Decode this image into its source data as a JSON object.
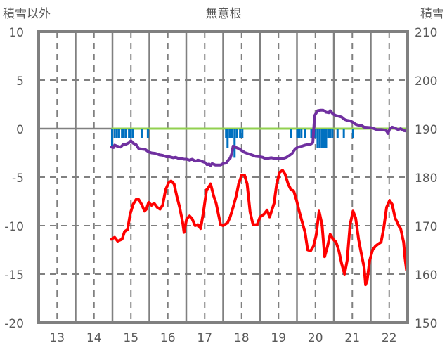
{
  "chart_data": {
    "type": "line",
    "title": "無意根",
    "ylabel_left": "積雪以外",
    "ylabel_right": "積雪",
    "xlim": [
      12.5,
      22.5
    ],
    "ylim_left": [
      -20,
      10
    ],
    "ylim_right": [
      150,
      210
    ],
    "x_ticks": [
      "13",
      "14",
      "15",
      "16",
      "17",
      "18",
      "19",
      "20",
      "21",
      "22"
    ],
    "x_tick_values": [
      13,
      14,
      15,
      16,
      17,
      18,
      19,
      20,
      21,
      22
    ],
    "y_ticks_left": [
      "10",
      "5",
      "0",
      "-5",
      "-10",
      "-15",
      "-20"
    ],
    "y_tick_values_left": [
      10,
      5,
      0,
      -5,
      -10,
      -15,
      -20
    ],
    "y_ticks_right": [
      "210",
      "200",
      "190",
      "180",
      "170",
      "160",
      "150"
    ],
    "y_tick_values_right": [
      210,
      200,
      190,
      180,
      170,
      160,
      150
    ],
    "grid": true,
    "colors": {
      "red": "#ff0000",
      "purple": "#7030a0",
      "blue": "#0070c0",
      "green": "#92d050",
      "axis": "#808080"
    },
    "series": [
      {
        "name": "red",
        "axis": "left",
        "color": "#ff0000",
        "points": [
          [
            14.47,
            -11.4
          ],
          [
            14.56,
            -11.2
          ],
          [
            14.64,
            -11.6
          ],
          [
            14.76,
            -11.4
          ],
          [
            14.83,
            -10.6
          ],
          [
            14.91,
            -10.4
          ],
          [
            14.98,
            -8.8
          ],
          [
            15.06,
            -7.8
          ],
          [
            15.14,
            -7.3
          ],
          [
            15.21,
            -7.3
          ],
          [
            15.29,
            -7.8
          ],
          [
            15.37,
            -8.5
          ],
          [
            15.42,
            -8.3
          ],
          [
            15.48,
            -7.6
          ],
          [
            15.56,
            -7.9
          ],
          [
            15.63,
            -7.7
          ],
          [
            15.71,
            -8.1
          ],
          [
            15.79,
            -8.3
          ],
          [
            15.86,
            -7.9
          ],
          [
            15.94,
            -6.3
          ],
          [
            16.02,
            -5.6
          ],
          [
            16.09,
            -5.4
          ],
          [
            16.17,
            -5.7
          ],
          [
            16.24,
            -6.9
          ],
          [
            16.32,
            -8.1
          ],
          [
            16.4,
            -9.6
          ],
          [
            16.44,
            -10.7
          ],
          [
            16.51,
            -9.3
          ],
          [
            16.59,
            -9.0
          ],
          [
            16.66,
            -9.3
          ],
          [
            16.74,
            -10.0
          ],
          [
            16.82,
            -9.9
          ],
          [
            16.89,
            -10.3
          ],
          [
            16.97,
            -8.5
          ],
          [
            17.05,
            -6.3
          ],
          [
            17.08,
            -6.2
          ],
          [
            17.16,
            -5.7
          ],
          [
            17.24,
            -6.9
          ],
          [
            17.31,
            -7.7
          ],
          [
            17.43,
            -9.9
          ],
          [
            17.5,
            -10.0
          ],
          [
            17.62,
            -9.7
          ],
          [
            17.69,
            -9.1
          ],
          [
            17.77,
            -8.1
          ],
          [
            17.85,
            -7.0
          ],
          [
            17.92,
            -5.7
          ],
          [
            18.0,
            -4.8
          ],
          [
            18.08,
            -4.8
          ],
          [
            18.15,
            -5.7
          ],
          [
            18.23,
            -8.6
          ],
          [
            18.31,
            -9.9
          ],
          [
            18.42,
            -9.9
          ],
          [
            18.5,
            -9.1
          ],
          [
            18.61,
            -8.8
          ],
          [
            18.69,
            -8.4
          ],
          [
            18.76,
            -9.1
          ],
          [
            18.88,
            -7.7
          ],
          [
            18.95,
            -5.7
          ],
          [
            19.03,
            -4.5
          ],
          [
            19.11,
            -4.3
          ],
          [
            19.18,
            -4.7
          ],
          [
            19.26,
            -5.7
          ],
          [
            19.34,
            -6.3
          ],
          [
            19.41,
            -6.4
          ],
          [
            19.49,
            -7.4
          ],
          [
            19.56,
            -8.5
          ],
          [
            19.64,
            -9.6
          ],
          [
            19.72,
            -10.7
          ],
          [
            19.79,
            -12.5
          ],
          [
            19.87,
            -12.6
          ],
          [
            19.95,
            -12.1
          ],
          [
            20.02,
            -11.0
          ],
          [
            20.1,
            -8.5
          ],
          [
            20.18,
            -9.9
          ],
          [
            20.25,
            -13.2
          ],
          [
            20.33,
            -12.1
          ],
          [
            20.4,
            -10.9
          ],
          [
            20.48,
            -11.4
          ],
          [
            20.56,
            -11.7
          ],
          [
            20.63,
            -12.5
          ],
          [
            20.71,
            -13.9
          ],
          [
            20.79,
            -15.0
          ],
          [
            20.86,
            -13.6
          ],
          [
            20.94,
            -9.9
          ],
          [
            21.02,
            -8.5
          ],
          [
            21.09,
            -9.2
          ],
          [
            21.17,
            -11.4
          ],
          [
            21.24,
            -12.8
          ],
          [
            21.32,
            -14.3
          ],
          [
            21.36,
            -16.1
          ],
          [
            21.4,
            -15.7
          ],
          [
            21.47,
            -13.6
          ],
          [
            21.55,
            -12.5
          ],
          [
            21.63,
            -12.1
          ],
          [
            21.7,
            -11.9
          ],
          [
            21.78,
            -11.7
          ],
          [
            21.85,
            -10.3
          ],
          [
            21.93,
            -8.1
          ],
          [
            22.01,
            -7.4
          ],
          [
            22.08,
            -7.8
          ],
          [
            22.16,
            -9.2
          ],
          [
            22.27,
            -10.1
          ],
          [
            22.31,
            -10.3
          ],
          [
            22.39,
            -11.7
          ],
          [
            22.43,
            -13.4
          ],
          [
            22.47,
            -14.6
          ]
        ]
      },
      {
        "name": "purple",
        "axis": "right",
        "color": "#7030a0",
        "points": [
          [
            14.47,
            186.2
          ],
          [
            14.53,
            186.1
          ],
          [
            14.56,
            186.6
          ],
          [
            14.62,
            186.4
          ],
          [
            14.72,
            186.2
          ],
          [
            14.79,
            186.7
          ],
          [
            14.87,
            186.8
          ],
          [
            14.95,
            187.1
          ],
          [
            15.0,
            187.5
          ],
          [
            15.06,
            187.0
          ],
          [
            15.14,
            186.7
          ],
          [
            15.21,
            185.9
          ],
          [
            15.29,
            185.8
          ],
          [
            15.39,
            185.7
          ],
          [
            15.48,
            185.2
          ],
          [
            15.56,
            185.0
          ],
          [
            15.67,
            184.9
          ],
          [
            15.77,
            184.6
          ],
          [
            15.86,
            184.5
          ],
          [
            15.96,
            184.2
          ],
          [
            16.05,
            184.2
          ],
          [
            16.15,
            184.0
          ],
          [
            16.21,
            184.1
          ],
          [
            16.28,
            183.9
          ],
          [
            16.36,
            183.9
          ],
          [
            16.44,
            183.7
          ],
          [
            16.51,
            183.7
          ],
          [
            16.59,
            183.5
          ],
          [
            16.66,
            183.7
          ],
          [
            16.74,
            183.3
          ],
          [
            16.82,
            183.5
          ],
          [
            16.91,
            183.3
          ],
          [
            17.01,
            183.0
          ],
          [
            17.06,
            182.6
          ],
          [
            17.12,
            182.7
          ],
          [
            17.16,
            182.4
          ],
          [
            17.2,
            182.8
          ],
          [
            17.29,
            182.5
          ],
          [
            17.43,
            182.5
          ],
          [
            17.5,
            182.8
          ],
          [
            17.58,
            182.9
          ],
          [
            17.66,
            183.7
          ],
          [
            17.69,
            183.9
          ],
          [
            17.73,
            184.8
          ],
          [
            17.77,
            186.4
          ],
          [
            17.85,
            186.1
          ],
          [
            17.92,
            185.9
          ],
          [
            18.0,
            185.5
          ],
          [
            18.08,
            185.1
          ],
          [
            18.15,
            184.9
          ],
          [
            18.27,
            184.6
          ],
          [
            18.38,
            184.3
          ],
          [
            18.5,
            184.2
          ],
          [
            18.57,
            184.1
          ],
          [
            18.65,
            183.8
          ],
          [
            18.73,
            183.9
          ],
          [
            18.8,
            184.0
          ],
          [
            18.88,
            183.9
          ],
          [
            18.95,
            183.8
          ],
          [
            19.03,
            183.9
          ],
          [
            19.11,
            183.8
          ],
          [
            19.22,
            184.1
          ],
          [
            19.3,
            184.5
          ],
          [
            19.37,
            184.9
          ],
          [
            19.45,
            185.8
          ],
          [
            19.53,
            186.2
          ],
          [
            19.64,
            186.4
          ],
          [
            19.72,
            186.6
          ],
          [
            19.79,
            186.7
          ],
          [
            19.87,
            186.8
          ],
          [
            19.93,
            187.1
          ],
          [
            19.95,
            189.4
          ],
          [
            19.98,
            192.7
          ],
          [
            20.06,
            193.7
          ],
          [
            20.14,
            193.8
          ],
          [
            20.21,
            193.8
          ],
          [
            20.29,
            193.4
          ],
          [
            20.37,
            193.3
          ],
          [
            20.4,
            193.7
          ],
          [
            20.48,
            193.0
          ],
          [
            20.56,
            192.7
          ],
          [
            20.71,
            192.4
          ],
          [
            20.79,
            191.9
          ],
          [
            20.86,
            191.7
          ],
          [
            20.94,
            191.6
          ],
          [
            21.02,
            191.3
          ],
          [
            21.09,
            190.9
          ],
          [
            21.17,
            190.7
          ],
          [
            21.24,
            190.7
          ],
          [
            21.32,
            190.3
          ],
          [
            21.51,
            190.2
          ],
          [
            21.59,
            190.0
          ],
          [
            21.66,
            189.8
          ],
          [
            21.78,
            189.8
          ],
          [
            21.89,
            189.7
          ],
          [
            21.93,
            189.5
          ],
          [
            21.97,
            189.0
          ],
          [
            22.01,
            189.9
          ],
          [
            22.08,
            190.3
          ],
          [
            22.16,
            190.1
          ],
          [
            22.24,
            189.8
          ],
          [
            22.31,
            190.0
          ],
          [
            22.39,
            189.6
          ],
          [
            22.47,
            189.5
          ]
        ]
      }
    ],
    "bars": {
      "name": "blue",
      "axis": "left",
      "color": "#0070c0",
      "points": [
        [
          14.49,
          -2
        ],
        [
          14.56,
          -1
        ],
        [
          14.62,
          -1
        ],
        [
          14.68,
          -1
        ],
        [
          14.76,
          -1
        ],
        [
          14.81,
          -1
        ],
        [
          14.87,
          -1
        ],
        [
          14.95,
          -1
        ],
        [
          15.0,
          -1
        ],
        [
          15.06,
          -1
        ],
        [
          15.29,
          -1
        ],
        [
          15.46,
          -1
        ],
        [
          17.58,
          -1
        ],
        [
          17.62,
          -2
        ],
        [
          17.68,
          -1
        ],
        [
          17.73,
          -1
        ],
        [
          17.81,
          -3
        ],
        [
          17.87,
          -1
        ],
        [
          17.96,
          -1
        ],
        [
          18.02,
          -1
        ],
        [
          19.34,
          -1
        ],
        [
          19.51,
          -1
        ],
        [
          19.56,
          -1
        ],
        [
          19.62,
          -1
        ],
        [
          19.72,
          -1
        ],
        [
          19.89,
          -1
        ],
        [
          19.95,
          -1
        ],
        [
          20.0,
          -1
        ],
        [
          20.06,
          -2
        ],
        [
          20.12,
          -2
        ],
        [
          20.18,
          -2
        ],
        [
          20.23,
          -2
        ],
        [
          20.29,
          -2
        ],
        [
          20.35,
          -1
        ],
        [
          20.4,
          -1
        ],
        [
          20.46,
          -1
        ],
        [
          20.6,
          -1
        ],
        [
          20.77,
          -1
        ],
        [
          21.02,
          -1
        ]
      ]
    },
    "zero_line": {
      "name": "green",
      "color": "#92d050",
      "x_range": [
        14.47,
        22.5
      ],
      "value": 0
    }
  }
}
